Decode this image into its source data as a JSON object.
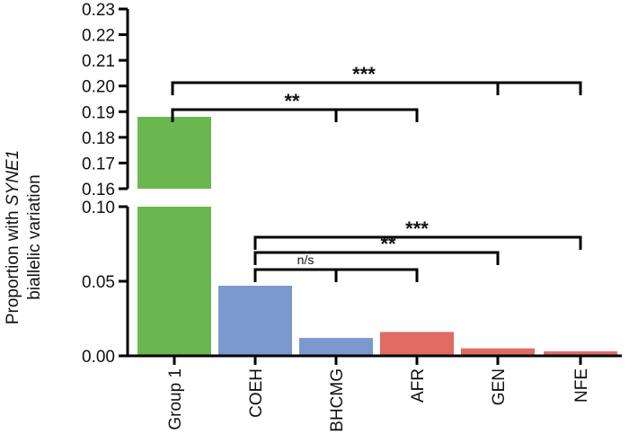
{
  "chart_data": {
    "type": "bar",
    "ylabel_line1_pre": "Proportion with ",
    "ylabel_line1_em": "SYNE1",
    "ylabel_line2": "biallelic variation",
    "categories": [
      "Group 1",
      "COEH",
      "BHCMG",
      "AFR",
      "GEN",
      "NFE"
    ],
    "values": [
      0.188,
      0.047,
      0.012,
      0.016,
      0.005,
      0.003
    ],
    "bar_colors": [
      "#6ab750",
      "#7b99cf",
      "#7b99cf",
      "#e06b63",
      "#e06b63",
      "#e06b63"
    ],
    "axis_break": {
      "lower": {
        "ylim": [
          0,
          0.1
        ],
        "ticks": [
          "0.00",
          "0.05",
          "0.10"
        ]
      },
      "upper": {
        "ylim": [
          0.16,
          0.23
        ],
        "ticks": [
          "0.16",
          "0.17",
          "0.18",
          "0.19",
          "0.20",
          "0.21",
          "0.22",
          "0.23"
        ]
      }
    },
    "annotations": [
      {
        "from": "Group 1",
        "to": [
          "BHCMG",
          "AFR"
        ],
        "label": "**"
      },
      {
        "from": "Group 1",
        "to": [
          "GEN",
          "NFE"
        ],
        "label": "***"
      },
      {
        "from": "COEH",
        "to": [
          "BHCMG",
          "AFR"
        ],
        "label": "n/s"
      },
      {
        "from": "COEH",
        "to": [
          "GEN"
        ],
        "label": "**"
      },
      {
        "from": "COEH",
        "to": [
          "NFE"
        ],
        "label": "***"
      }
    ]
  }
}
